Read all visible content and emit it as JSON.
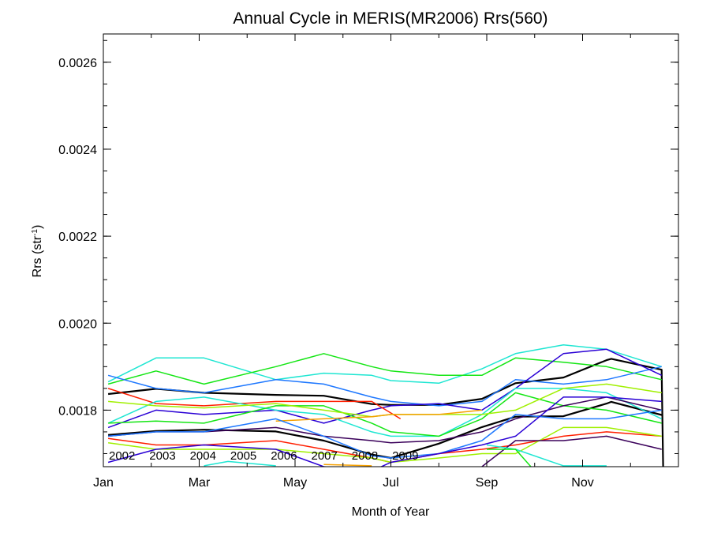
{
  "chart_data": {
    "type": "line",
    "title": "Annual Cycle in MERIS(MR2006) Rrs(560)",
    "xlabel": "Month of Year",
    "ylabel_main": "Rrs (str",
    "ylabel_sup": "-1",
    "ylabel_close": ")",
    "xlim": [
      0,
      12
    ],
    "ylim": [
      0.00167,
      0.002665
    ],
    "x_ticks": [
      {
        "value": 0,
        "label": "Jan"
      },
      {
        "value": 2,
        "label": "Mar"
      },
      {
        "value": 4,
        "label": "May"
      },
      {
        "value": 6,
        "label": "Jul"
      },
      {
        "value": 8,
        "label": "Sep"
      },
      {
        "value": 10,
        "label": "Nov"
      }
    ],
    "y_ticks": [
      {
        "value": 0.0018,
        "label": "0.0018"
      },
      {
        "value": 0.002,
        "label": "0.0020"
      },
      {
        "value": 0.0022,
        "label": "0.0022"
      },
      {
        "value": 0.0024,
        "label": "0.0024"
      },
      {
        "value": 0.0026,
        "label": "0.0026"
      }
    ],
    "legend": [
      {
        "label": "2002",
        "color": "#3a005a"
      },
      {
        "label": "2003",
        "color": "#2a00d5"
      },
      {
        "label": "2004",
        "color": "#1e78ff"
      },
      {
        "label": "2005",
        "color": "#1ee6d2"
      },
      {
        "label": "2006",
        "color": "#14e614"
      },
      {
        "label": "2007",
        "color": "#a0f000"
      },
      {
        "label": "2008",
        "color": "#f5a000"
      },
      {
        "label": "2009",
        "color": "#ff1e00"
      }
    ],
    "series": [
      {
        "color": "#000000",
        "width": 2.2,
        "x": [
          0.1,
          1.1,
          2.1,
          3.6,
          4.6,
          5.6,
          6.0,
          7.0,
          7.9,
          8.6,
          9.6,
          10.5,
          10.6,
          11.65,
          11.68
        ],
        "y": [
          0.001837,
          0.001849,
          0.00184,
          0.001835,
          0.001833,
          0.001814,
          0.001812,
          0.001812,
          0.001826,
          0.001862,
          0.001875,
          0.001915,
          0.001918,
          0.001893,
          0.00167
        ]
      },
      {
        "color": "#000000",
        "width": 2.2,
        "x": [
          0.1,
          1.1,
          2.1,
          3.6,
          4.6,
          5.6,
          6.0,
          7.0,
          7.9,
          8.6,
          9.6,
          10.5,
          10.6,
          11.65
        ],
        "y": [
          0.001743,
          0.001752,
          0.001755,
          0.001751,
          0.00173,
          0.001698,
          0.00169,
          0.001723,
          0.001761,
          0.001785,
          0.001786,
          0.001815,
          0.001819,
          0.001789
        ]
      },
      {
        "color": "#1ee6d2",
        "width": 1.5,
        "x": [
          0.1,
          1.1,
          2.1,
          3.6,
          4.6,
          5.6,
          6.0,
          7.0,
          7.9,
          8.6,
          9.6,
          10.5,
          11.65
        ],
        "y": [
          0.001865,
          0.00192,
          0.00192,
          0.00187,
          0.001885,
          0.00188,
          0.001868,
          0.001862,
          0.001895,
          0.00193,
          0.00195,
          0.00194,
          0.0019
        ]
      },
      {
        "color": "#14e614",
        "width": 1.5,
        "x": [
          0.1,
          1.1,
          2.1,
          3.6,
          4.6,
          5.6,
          6.0,
          7.0,
          7.9,
          8.6,
          9.6,
          10.5,
          11.65
        ],
        "y": [
          0.00186,
          0.00189,
          0.00186,
          0.0019,
          0.00193,
          0.0019,
          0.00189,
          0.00188,
          0.00188,
          0.00192,
          0.00191,
          0.0019,
          0.00187
        ]
      },
      {
        "color": "#1e78ff",
        "width": 1.5,
        "x": [
          0.1,
          1.1,
          2.1,
          3.6,
          4.6,
          5.6,
          6.0,
          7.0,
          7.9,
          8.6,
          9.6,
          10.5,
          11.65
        ],
        "y": [
          0.00188,
          0.00185,
          0.00184,
          0.00187,
          0.00186,
          0.00183,
          0.00182,
          0.00181,
          0.00182,
          0.00187,
          0.00186,
          0.00187,
          0.0019
        ]
      },
      {
        "color": "#2a00d5",
        "width": 1.5,
        "x": [
          0.1,
          1.1,
          2.1,
          3.6,
          4.6,
          5.6,
          6.0,
          7.0,
          7.9,
          8.6,
          9.6,
          10.5,
          11.65
        ],
        "y": [
          0.00176,
          0.0018,
          0.00179,
          0.0018,
          0.00177,
          0.0018,
          0.00181,
          0.001815,
          0.0018,
          0.00185,
          0.00193,
          0.00194,
          0.00188
        ]
      },
      {
        "color": "#ff1e00",
        "width": 1.5,
        "x": [
          0.1,
          1.1,
          2.1,
          3.6,
          4.6,
          5.6,
          6.2
        ],
        "y": [
          0.00185,
          0.001815,
          0.00181,
          0.00182,
          0.00182,
          0.00182,
          0.00178
        ]
      },
      {
        "color": "#1ee6d2",
        "width": 1.5,
        "x": [
          0.1,
          1.1,
          2.1,
          3.6,
          4.6,
          5.6,
          6.0,
          7.0,
          7.9,
          8.6,
          9.6,
          10.5,
          11.65
        ],
        "y": [
          0.00177,
          0.00182,
          0.00183,
          0.0018,
          0.00179,
          0.00175,
          0.00174,
          0.00174,
          0.00179,
          0.00185,
          0.00185,
          0.00184,
          0.00178
        ]
      },
      {
        "color": "#14e614",
        "width": 1.5,
        "x": [
          0.1,
          1.1,
          2.1,
          3.6,
          4.6,
          5.6,
          6.0,
          7.0,
          7.9,
          8.6,
          9.6,
          10.5,
          11.65
        ],
        "y": [
          0.00177,
          0.001775,
          0.00177,
          0.00181,
          0.00181,
          0.00177,
          0.00175,
          0.00174,
          0.00178,
          0.00184,
          0.00181,
          0.0018,
          0.00177
        ]
      },
      {
        "color": "#a0f000",
        "width": 1.5,
        "x": [
          0.1,
          1.1,
          2.1,
          3.6,
          4.6,
          5.6,
          6.0,
          7.0,
          7.9,
          8.6,
          9.6,
          10.5,
          11.65
        ],
        "y": [
          0.00182,
          0.00181,
          0.001805,
          0.001815,
          0.0018,
          0.001785,
          0.00179,
          0.00179,
          0.00179,
          0.0018,
          0.00185,
          0.00186,
          0.00184
        ]
      },
      {
        "color": "#f5a000",
        "width": 1.5,
        "x": [
          3.6,
          4.6,
          5.6,
          6.0,
          7.0,
          7.9
        ],
        "y": [
          0.001775,
          0.00178,
          0.001785,
          0.00179,
          0.00179,
          0.0018
        ]
      },
      {
        "color": "#3a005a",
        "width": 1.5,
        "x": [
          0.1,
          1.1,
          2.1,
          3.6,
          4.6,
          5.6,
          6.0,
          7.0,
          7.9,
          8.6,
          9.6,
          10.5,
          11.65
        ],
        "y": [
          0.00174,
          0.00175,
          0.00175,
          0.00176,
          0.00174,
          0.00173,
          0.001725,
          0.00173,
          0.00175,
          0.00178,
          0.00181,
          0.00183,
          0.0018
        ]
      },
      {
        "color": "#1e78ff",
        "width": 1.5,
        "x": [
          0.1,
          1.1,
          2.1,
          3.6,
          4.6,
          5.6,
          6.0,
          7.0,
          7.9,
          8.6,
          9.6,
          10.5,
          11.65
        ],
        "y": [
          0.00174,
          0.00175,
          0.00175,
          0.00178,
          0.00174,
          0.001695,
          0.00169,
          0.0017,
          0.00173,
          0.00179,
          0.00178,
          0.00178,
          0.0018
        ]
      },
      {
        "color": "#ff1e00",
        "width": 1.5,
        "x": [
          0.1,
          1.1,
          2.1,
          3.6,
          4.6,
          5.6,
          6.0,
          7.0,
          7.9,
          8.6,
          9.6,
          10.5,
          11.65
        ],
        "y": [
          0.001735,
          0.00172,
          0.00172,
          0.00173,
          0.00171,
          0.00169,
          0.00168,
          0.0017,
          0.00171,
          0.00172,
          0.00174,
          0.00175,
          0.00174
        ]
      },
      {
        "color": "#a0f000",
        "width": 1.5,
        "x": [
          0.1,
          1.1,
          2.1,
          3.6,
          4.6,
          5.6,
          6.0,
          7.0,
          7.9,
          8.6,
          9.6,
          10.5,
          11.65
        ],
        "y": [
          0.001725,
          0.00171,
          0.00171,
          0.00171,
          0.0017,
          0.00169,
          0.00168,
          0.00169,
          0.0017,
          0.0017,
          0.00176,
          0.00176,
          0.00174
        ]
      },
      {
        "color": "#3a005a",
        "width": 1.5,
        "x": [
          7.9,
          8.6,
          9.6,
          10.5,
          11.65
        ],
        "y": [
          0.00167,
          0.00173,
          0.00173,
          0.00174,
          0.00171
        ]
      },
      {
        "color": "#2a00d5",
        "width": 1.5,
        "x": [
          0.1,
          1.1,
          2.1,
          3.6,
          4.6,
          5.6,
          6.0,
          7.0,
          7.9,
          8.6,
          9.6,
          10.5,
          11.65
        ],
        "y": [
          0.00168,
          0.00171,
          0.00172,
          0.00171,
          0.00167,
          0.00166,
          0.00168,
          0.0017,
          0.00172,
          0.00174,
          0.00183,
          0.00183,
          0.00182
        ]
      },
      {
        "color": "#1ee6d2",
        "width": 1.5,
        "x": [
          2.1,
          2.6,
          3.6
        ],
        "y": [
          0.001672,
          0.001682,
          0.001672
        ]
      },
      {
        "color": "#1ee6d2",
        "width": 1.5,
        "x": [
          8.0,
          8.6,
          9.6,
          10.5
        ],
        "y": [
          0.00172,
          0.00171,
          0.001672,
          0.001672
        ]
      },
      {
        "color": "#14e614",
        "width": 1.5,
        "x": [
          8.0,
          8.6,
          9.0
        ],
        "y": [
          0.00171,
          0.00171,
          0.00166
        ]
      },
      {
        "color": "#f5a000",
        "width": 1.5,
        "x": [
          4.6,
          5.6
        ],
        "y": [
          0.001675,
          0.001672
        ]
      }
    ]
  }
}
